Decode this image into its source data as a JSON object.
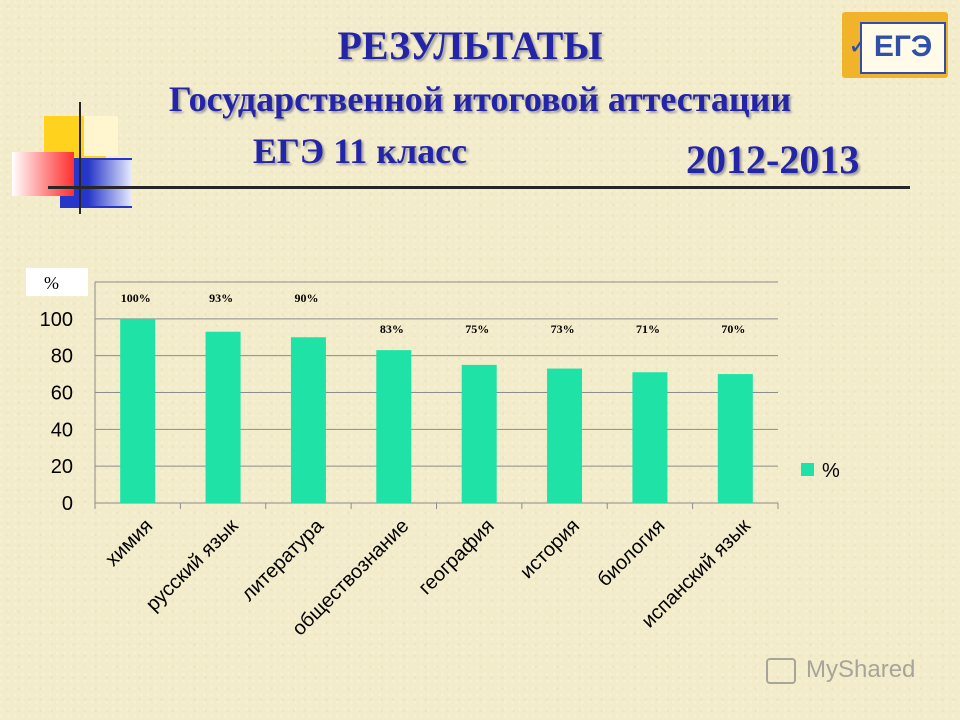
{
  "header": {
    "title_line1": "РЕЗУЛЬТАТЫ",
    "title_line2": "Государственной итоговой аттестации",
    "title_line3": "ЕГЭ  11 класс",
    "year": "2012-2013"
  },
  "logo": {
    "text": "ЕГЭ"
  },
  "watermark": {
    "text": "MyShared"
  },
  "colors": {
    "bar": "#1ee2a6",
    "title": "#2424a8"
  },
  "chart_data": {
    "type": "bar",
    "unit_label": "%",
    "categories": [
      "химия",
      "русский язык",
      "литература",
      "обществознание",
      "география",
      "история",
      "биология",
      "испанский язык"
    ],
    "series": [
      {
        "name": "%",
        "values": [
          100,
          93,
          90,
          83,
          75,
          73,
          71,
          70
        ]
      }
    ],
    "data_labels": [
      "100%",
      "93%",
      "90%",
      "83%",
      "75%",
      "73%",
      "71%",
      "70%"
    ],
    "yticks": [
      "0",
      "20",
      "40",
      "60",
      "80",
      "100"
    ],
    "ylim": [
      0,
      120
    ],
    "grid": true,
    "legend": "right"
  }
}
